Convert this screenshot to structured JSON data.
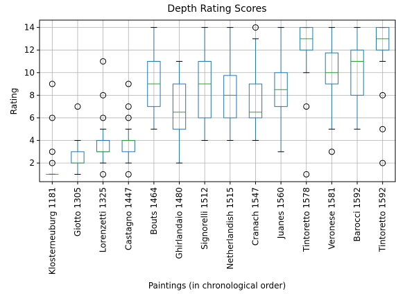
{
  "chart_data": {
    "type": "box",
    "title": "Depth Rating Scores",
    "x_label": "Paintings (in chronological order)",
    "y_label": "Rating",
    "categories": [
      "Klosterneuburg 1181",
      "Giotto 1305",
      "Lorenzetti 1325",
      "Castagno 1447",
      "Bouts 1464",
      "Ghirlandaio 1480",
      "Signorelli 1512",
      "Netherlandish 1515",
      "Cranach 1547",
      "Juanes 1560",
      "Tintoretto 1578",
      "Veronese 1581",
      "Barocci 1592",
      "Tintoretto 1592"
    ],
    "boxes": [
      {
        "whislo": 1,
        "q1": 1,
        "median": 1,
        "q3": 1,
        "whishi": 1,
        "fliers": [
          2,
          3,
          6,
          9
        ]
      },
      {
        "whislo": 1,
        "q1": 2,
        "median": 2,
        "q3": 3,
        "whishi": 4,
        "fliers": [
          7
        ]
      },
      {
        "whislo": 2,
        "q1": 3,
        "median": 3,
        "q3": 4,
        "whishi": 5,
        "fliers": [
          1,
          6,
          8,
          11
        ]
      },
      {
        "whislo": 2,
        "q1": 3,
        "median": 4,
        "q3": 4,
        "whishi": 5,
        "fliers": [
          1,
          6,
          7,
          9
        ]
      },
      {
        "whislo": 5,
        "q1": 7,
        "median": 9,
        "q3": 11,
        "whishi": 14,
        "fliers": []
      },
      {
        "whislo": 2,
        "q1": 5,
        "median": 6.5,
        "q3": 9,
        "whishi": 11,
        "fliers": []
      },
      {
        "whislo": 4,
        "q1": 6,
        "median": 9,
        "q3": 11,
        "whishi": 14,
        "fliers": []
      },
      {
        "whislo": 4,
        "q1": 6,
        "median": 8,
        "q3": 9.75,
        "whishi": 14,
        "fliers": []
      },
      {
        "whislo": 4,
        "q1": 6,
        "median": 6.5,
        "q3": 9,
        "whishi": 13,
        "fliers": [
          14
        ]
      },
      {
        "whislo": 3,
        "q1": 7,
        "median": 8.5,
        "q3": 10,
        "whishi": 14,
        "fliers": []
      },
      {
        "whislo": 10,
        "q1": 12,
        "median": 13,
        "q3": 14,
        "whishi": 14,
        "fliers": [
          1,
          7
        ]
      },
      {
        "whislo": 5,
        "q1": 9,
        "median": 10,
        "q3": 11.75,
        "whishi": 14,
        "fliers": [
          3
        ]
      },
      {
        "whislo": 5,
        "q1": 8,
        "median": 11,
        "q3": 12,
        "whishi": 14,
        "fliers": []
      },
      {
        "whislo": 11,
        "q1": 12,
        "median": 13,
        "q3": 14,
        "whishi": 14,
        "fliers": [
          2,
          5,
          8
        ]
      }
    ],
    "box_color": "#1f77b4",
    "median_color": "#2ca02c",
    "ylim": [
      0.35,
      14.65
    ],
    "yticks": [
      2,
      4,
      6,
      8,
      10,
      12,
      14
    ],
    "grid": true
  }
}
